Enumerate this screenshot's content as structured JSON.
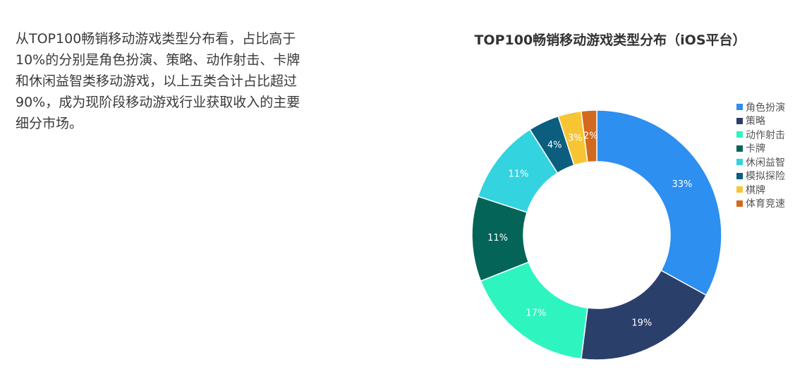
{
  "intro_text": "从TOP100畅销移动游戏类型分布看，占比高于10%的分别是角色扮演、策略、动作射击、卡牌和休闲益智类移动游戏，以上五类合计占比超过90%，成为现阶段移动游戏行业获取收入的主要细分市场。",
  "chart_data": {
    "type": "pie",
    "title": "TOP100畅销移动游戏类型分布（iOS平台）",
    "donut": true,
    "legend_position": "right",
    "categories": [
      "角色扮演",
      "策略",
      "动作射击",
      "卡牌",
      "休闲益智",
      "模拟探险",
      "棋牌",
      "体育竞速"
    ],
    "values": [
      33,
      19,
      17,
      11,
      11,
      4,
      3,
      2
    ],
    "labels": [
      "33%",
      "19%",
      "17%",
      "11%",
      "11%",
      "4%",
      "3%",
      "2%"
    ],
    "colors": [
      "#2d8ff0",
      "#2b3f6b",
      "#2ef5c0",
      "#046457",
      "#33d3df",
      "#0b5e7e",
      "#f7c534",
      "#d2691e"
    ]
  }
}
